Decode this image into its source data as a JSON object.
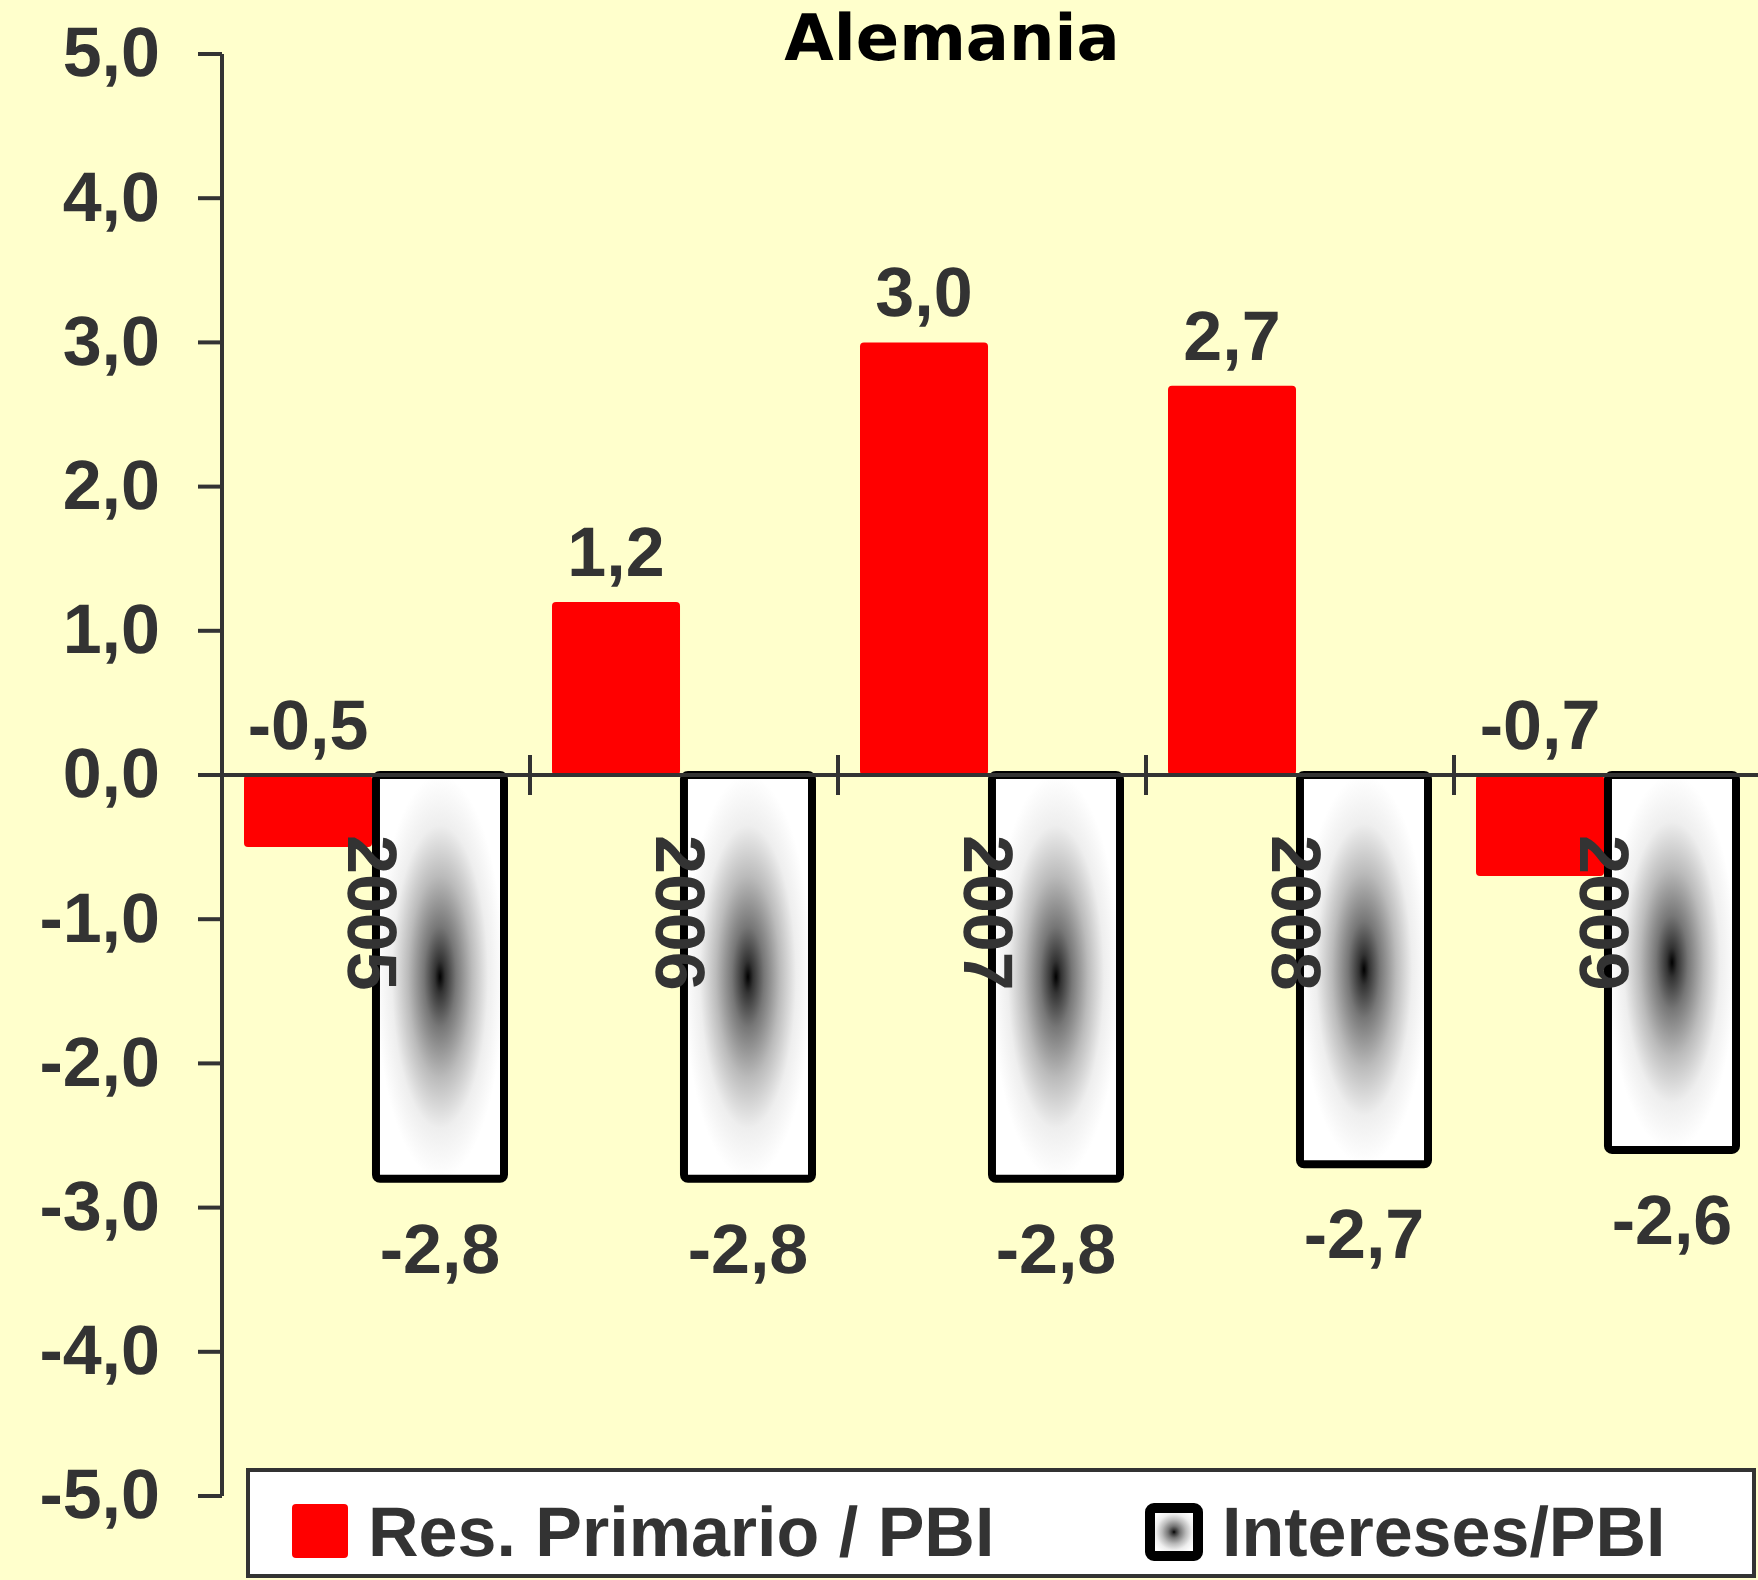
{
  "chart_data": {
    "type": "bar",
    "title": "Alemania",
    "categories": [
      "2005",
      "2006",
      "2007",
      "2008",
      "2009"
    ],
    "series": [
      {
        "name": "Res. Primario / PBI",
        "color": "#ff0000",
        "values": [
          -0.5,
          1.2,
          3.0,
          2.7,
          -0.7
        ],
        "value_labels": [
          "-0,5",
          "1,2",
          "3,0",
          "2,7",
          "-0,7"
        ]
      },
      {
        "name": "Intereses/PBI",
        "color": "#000000",
        "values": [
          -2.8,
          -2.8,
          -2.8,
          -2.7,
          -2.6
        ],
        "value_labels": [
          "-2,8",
          "-2,8",
          "-2,8",
          "-2,7",
          "-2,6"
        ]
      }
    ],
    "ylim": [
      -5,
      5
    ],
    "yticks": [
      {
        "value": 5,
        "label": "5,0"
      },
      {
        "value": 4,
        "label": "4,0"
      },
      {
        "value": 3,
        "label": "3,0"
      },
      {
        "value": 2,
        "label": "2,0"
      },
      {
        "value": 1,
        "label": "1,0"
      },
      {
        "value": 0,
        "label": "0,0"
      },
      {
        "value": -1,
        "label": "-1,0"
      },
      {
        "value": -2,
        "label": "-2,0"
      },
      {
        "value": -3,
        "label": "-3,0"
      },
      {
        "value": -4,
        "label": "-4,0"
      },
      {
        "value": -5,
        "label": "-5,0"
      }
    ],
    "legend": "bottom"
  }
}
